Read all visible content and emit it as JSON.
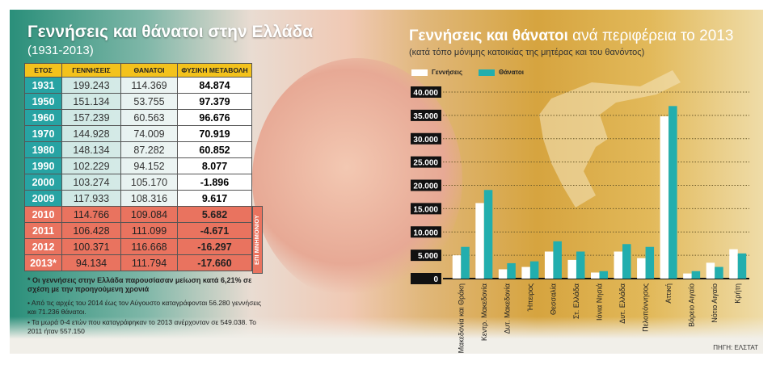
{
  "left": {
    "title": "Γεννήσεις και θάνατοι στην Ελλάδα",
    "subtitle": "(1931-2013)",
    "headers": [
      "ΕΤΟΣ",
      "ΓΕΝΝΗΣΕΙΣ",
      "ΘΑΝΑΤΟΙ",
      "ΦΥΣΙΚΗ ΜΕΤΑΒΟΛΗ"
    ],
    "rows": [
      [
        "1931",
        "199.243",
        "114.369",
        "84.874"
      ],
      [
        "1950",
        "151.134",
        "53.755",
        "97.379"
      ],
      [
        "1960",
        "157.239",
        "60.563",
        "96.676"
      ],
      [
        "1970",
        "144.928",
        "74.009",
        "70.919"
      ],
      [
        "1980",
        "148.134",
        "87.282",
        "60.852"
      ],
      [
        "1990",
        "102.229",
        "94.152",
        "8.077"
      ],
      [
        "2000",
        "103.274",
        "105.170",
        "-1.896"
      ],
      [
        "2009",
        "117.933",
        "108.316",
        "9.617"
      ],
      [
        "2010",
        "114.766",
        "109.084",
        "5.682"
      ],
      [
        "2011",
        "106.428",
        "111.099",
        "-4.671"
      ],
      [
        "2012",
        "100.371",
        "116.668",
        "-16.297"
      ],
      [
        "2013*",
        "94.134",
        "111.794",
        "-17.660"
      ]
    ],
    "memorandum_label": "ΕΠΙ ΜΝΗΜΟΝΙΟΥ",
    "note_star": "* Οι γεννήσεις στην Ελλάδα παρουσίασαν μείωση κατά 6,21% σε σχέση με την προηγούμενη χρονιά",
    "note_1": "• Από τις αρχές του 2014 έως τον Αύγουστο καταγράφονται 56.280 γεννήσεις και 71.236 θάνατοι.",
    "note_2": "• Τα μωρά 0-4 ετών που καταγράφηκαν το 2013 ανέρχονταν σε 549.038. Το 2011 ήταν 557.150"
  },
  "chart_data": {
    "type": "bar",
    "title_bold": "Γεννήσεις και θάνατοι",
    "title_rest": " ανά περιφέρεια το 2013",
    "subtitle": "(κατά τόπο μόνιμης κατοικίας της μητέρας και του θανόντος)",
    "categories": [
      "Αν. Μακεδονία και Θράκη",
      "Κεντρ. Μακεδονία",
      "Δυτ. Μακεδονία",
      "Ήπειρος",
      "Θεσσαλία",
      "Στ. Ελλάδα",
      "Ιόνια Νησιά",
      "Δυτ. Ελλάδα",
      "Πελοπόννησος",
      "Αττική",
      "Βόρειο Αιγαίο",
      "Νότιο Αιγαίο",
      "Κρήτη"
    ],
    "series": [
      {
        "name": "Γεννήσεις",
        "color": "#ffffff",
        "values": [
          5000,
          16200,
          2000,
          2500,
          5800,
          4000,
          1300,
          5800,
          4400,
          34800,
          1100,
          3400,
          6300
        ]
      },
      {
        "name": "Θάνατοι",
        "color": "#22aeae",
        "values": [
          6800,
          19000,
          3300,
          3700,
          8000,
          5800,
          1600,
          7400,
          6800,
          37000,
          1600,
          2500,
          5400
        ]
      }
    ],
    "yticks": [
      "0",
      "5.000",
      "10.000",
      "15.000",
      "20.000",
      "25.000",
      "30.000",
      "35.000",
      "40.000"
    ],
    "ylim": [
      0,
      40000
    ],
    "grid": true,
    "legend": "top-left",
    "source": "ΠΗΓΗ: ΕΛΣΤΑΤ"
  }
}
